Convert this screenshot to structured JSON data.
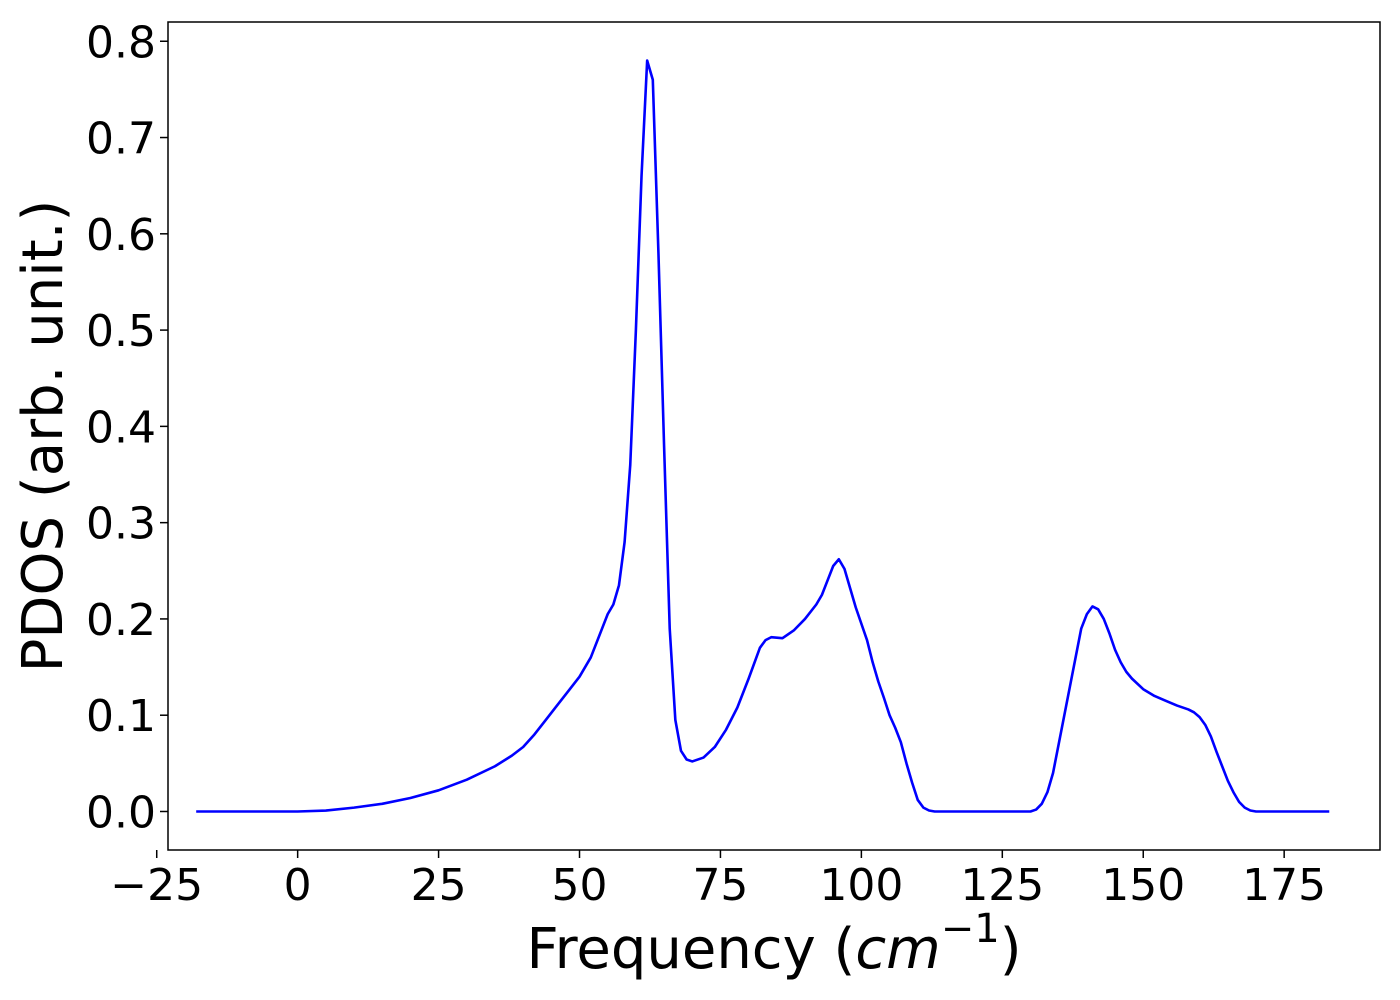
{
  "chart_data": {
    "type": "line",
    "xlabel": "Frequency (",
    "xlabel_unit": "cm",
    "xlabel_exponent": "−1",
    "xlabel_close": ")",
    "ylabel": "PDOS (arb. unit.)",
    "xlim": [
      -23,
      192
    ],
    "ylim": [
      -0.04,
      0.82
    ],
    "x_ticks": [
      -25,
      0,
      25,
      50,
      75,
      100,
      125,
      150,
      175
    ],
    "x_tick_labels": [
      "−25",
      "0",
      "25",
      "50",
      "75",
      "100",
      "125",
      "150",
      "175"
    ],
    "y_ticks": [
      0.0,
      0.1,
      0.2,
      0.3,
      0.4,
      0.5,
      0.6,
      0.7,
      0.8
    ],
    "y_tick_labels": [
      "0.0",
      "0.1",
      "0.2",
      "0.3",
      "0.4",
      "0.5",
      "0.6",
      "0.7",
      "0.8"
    ],
    "grid": false,
    "series": [
      {
        "color": "#0000ff",
        "x": [
          -18,
          -10,
          0,
          5,
          10,
          15,
          20,
          25,
          30,
          35,
          38,
          40,
          42,
          44,
          46,
          48,
          50,
          52,
          54,
          55,
          56,
          57,
          58,
          59,
          60,
          61,
          62,
          63,
          64,
          65,
          66,
          67,
          68,
          69,
          70,
          72,
          74,
          76,
          78,
          80,
          82,
          83,
          84,
          86,
          88,
          90,
          92,
          93,
          94,
          95,
          96,
          97,
          98,
          99,
          100,
          101,
          102,
          103,
          104,
          105,
          106,
          107,
          108,
          109,
          110,
          111,
          112,
          113,
          115,
          120,
          125,
          130,
          131,
          132,
          133,
          134,
          135,
          136,
          137,
          138,
          139,
          140,
          141,
          142,
          143,
          144,
          145,
          146,
          147,
          148,
          150,
          152,
          154,
          156,
          158,
          159,
          160,
          161,
          162,
          163,
          164,
          165,
          166,
          167,
          168,
          169,
          170,
          172,
          175,
          180,
          183
        ],
        "y": [
          0.0,
          0.0,
          0.0,
          0.001,
          0.004,
          0.008,
          0.014,
          0.022,
          0.033,
          0.047,
          0.058,
          0.067,
          0.08,
          0.095,
          0.11,
          0.125,
          0.14,
          0.16,
          0.19,
          0.205,
          0.215,
          0.235,
          0.28,
          0.36,
          0.5,
          0.66,
          0.78,
          0.76,
          0.58,
          0.38,
          0.19,
          0.095,
          0.063,
          0.054,
          0.052,
          0.056,
          0.067,
          0.085,
          0.108,
          0.138,
          0.17,
          0.178,
          0.181,
          0.18,
          0.188,
          0.2,
          0.215,
          0.225,
          0.24,
          0.255,
          0.262,
          0.252,
          0.232,
          0.212,
          0.195,
          0.178,
          0.155,
          0.135,
          0.118,
          0.1,
          0.087,
          0.072,
          0.05,
          0.03,
          0.012,
          0.004,
          0.001,
          0.0,
          0.0,
          0.0,
          0.0,
          0.0,
          0.002,
          0.008,
          0.02,
          0.04,
          0.07,
          0.1,
          0.13,
          0.16,
          0.19,
          0.205,
          0.213,
          0.21,
          0.2,
          0.185,
          0.168,
          0.155,
          0.145,
          0.138,
          0.127,
          0.12,
          0.115,
          0.11,
          0.106,
          0.103,
          0.098,
          0.09,
          0.078,
          0.062,
          0.047,
          0.032,
          0.02,
          0.01,
          0.004,
          0.001,
          0.0,
          0.0,
          0.0,
          0.0,
          0.0
        ]
      }
    ]
  }
}
